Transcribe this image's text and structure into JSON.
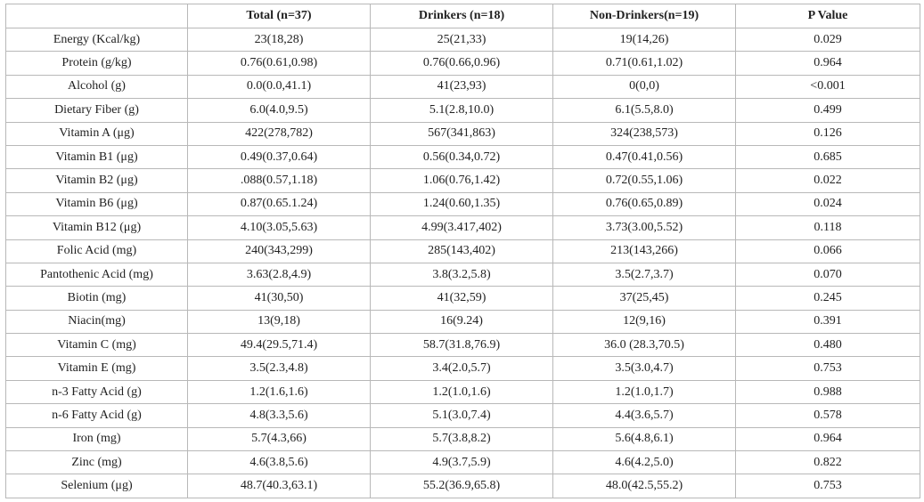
{
  "table": {
    "header": [
      "Total (n=37)",
      "Drinkers (n=18)",
      "Non-Drinkers(n=19)",
      "P Value"
    ],
    "rows": [
      [
        "Energy (Kcal/kg)",
        "23(18,28)",
        "25(21,33)",
        "19(14,26)",
        "0.029"
      ],
      [
        "Protein (g/kg)",
        "0.76(0.61,0.98)",
        "0.76(0.66,0.96)",
        "0.71(0.61,1.02)",
        "0.964"
      ],
      [
        "Alcohol (g)",
        "0.0(0.0,41.1)",
        "41(23,93)",
        "0(0,0)",
        "<0.001"
      ],
      [
        "Dietary Fiber (g)",
        "6.0(4.0,9.5)",
        "5.1(2.8,10.0)",
        "6.1(5.5,8.0)",
        "0.499"
      ],
      [
        "Vitamin A (μg)",
        "422(278,782)",
        "567(341,863)",
        "324(238,573)",
        "0.126"
      ],
      [
        "Vitamin B1 (μg)",
        "0.49(0.37,0.64)",
        "0.56(0.34,0.72)",
        "0.47(0.41,0.56)",
        "0.685"
      ],
      [
        "Vitamin B2 (μg)",
        ".088(0.57,1.18)",
        "1.06(0.76,1.42)",
        "0.72(0.55,1.06)",
        "0.022"
      ],
      [
        "Vitamin B6 (μg)",
        "0.87(0.65.1.24)",
        "1.24(0.60,1.35)",
        "0.76(0.65,0.89)",
        "0.024"
      ],
      [
        "Vitamin B12 (μg)",
        "4.10(3.05,5.63)",
        "4.99(3.417,402)",
        "3.73(3.00,5.52)",
        "0.118"
      ],
      [
        "Folic Acid (mg)",
        "240(343,299)",
        "285(143,402)",
        "213(143,266)",
        "0.066"
      ],
      [
        "Pantothenic Acid (mg)",
        "3.63(2.8,4.9)",
        "3.8(3.2,5.8)",
        "3.5(2.7,3.7)",
        "0.070"
      ],
      [
        "Biotin (mg)",
        "41(30,50)",
        "41(32,59)",
        "37(25,45)",
        "0.245"
      ],
      [
        "Niacin(mg)",
        "13(9,18)",
        "16(9.24)",
        "12(9,16)",
        "0.391"
      ],
      [
        "Vitamin C (mg)",
        "49.4(29.5,71.4)",
        "58.7(31.8,76.9)",
        "36.0 (28.3,70.5)",
        "0.480"
      ],
      [
        "Vitamin E (mg)",
        "3.5(2.3,4.8)",
        "3.4(2.0,5.7)",
        "3.5(3.0,4.7)",
        "0.753"
      ],
      [
        "n-3 Fatty Acid (g)",
        "1.2(1.6,1.6)",
        "1.2(1.0,1.6)",
        "1.2(1.0,1.7)",
        "0.988"
      ],
      [
        "n-6 Fatty Acid (g)",
        "4.8(3.3,5.6)",
        "5.1(3.0,7.4)",
        "4.4(3.6,5.7)",
        "0.578"
      ],
      [
        "Iron (mg)",
        "5.7(4.3,66)",
        "5.7(3.8,8.2)",
        "5.6(4.8,6.1)",
        "0.964"
      ],
      [
        "Zinc (mg)",
        "4.6(3.8,5.6)",
        "4.9(3.7,5.9)",
        "4.6(4.2,5.0)",
        "0.822"
      ],
      [
        "Selenium (μg)",
        "48.7(40.3,63.1)",
        "55.2(36.9,65.8)",
        "48.0(42.5,55.2)",
        "0.753"
      ]
    ]
  }
}
